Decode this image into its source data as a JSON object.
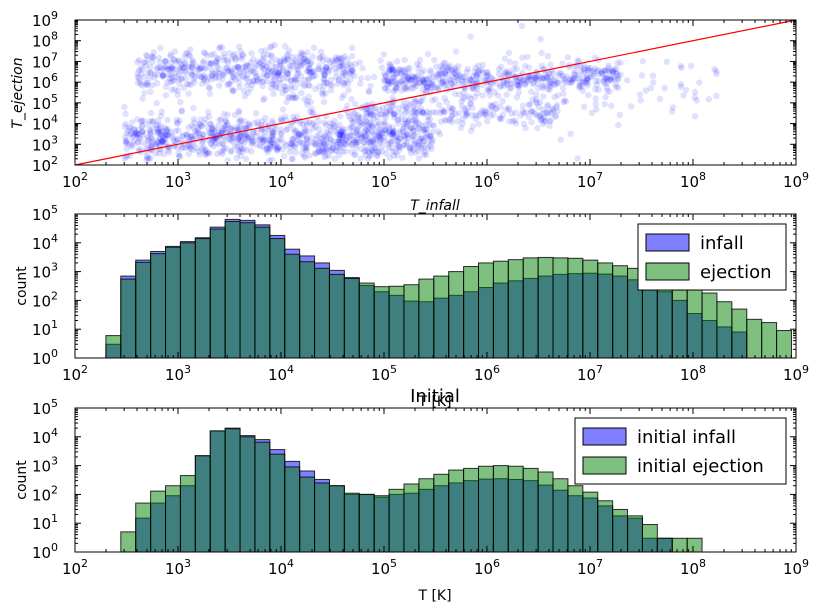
{
  "chart_data": [
    {
      "type": "scatter",
      "xscale": "log",
      "yscale": "log",
      "xlim": [
        100,
        1000000000
      ],
      "ylim": [
        100,
        1000000000
      ],
      "xlabel": "T_infall",
      "ylabel": "T_ejection",
      "x_ticks": [
        "10^2",
        "10^3",
        "10^4",
        "10^5",
        "10^6",
        "10^7",
        "10^8",
        "10^9"
      ],
      "y_ticks": [
        "10^2",
        "10^3",
        "10^4",
        "10^5",
        "10^6",
        "10^7",
        "10^8",
        "10^9"
      ],
      "color": "#0000ff",
      "point_alpha": 0.12,
      "reference_line": {
        "label": "y = x",
        "from": [
          100,
          100
        ],
        "to": [
          1000000000,
          1000000000
        ],
        "color": "#ff0000"
      },
      "clusters": [
        {
          "x_range": [
            300,
            300000
          ],
          "y_center": 2000,
          "y_spread": 1.0,
          "n": 900
        },
        {
          "x_range": [
            400,
            50000
          ],
          "y_center": 3000000,
          "y_spread": 1.0,
          "n": 500
        },
        {
          "x_range": [
            100000,
            20000000
          ],
          "y_center": 1500000,
          "y_spread": 0.7,
          "n": 450
        },
        {
          "x_range": [
            50000,
            5000000
          ],
          "y_center": 30000,
          "y_spread": 0.6,
          "n": 200
        },
        {
          "x_range": [
            5000,
            200000000
          ],
          "y_center": 400000,
          "y_spread": 1.8,
          "n": 180
        }
      ]
    },
    {
      "type": "bar",
      "histtype": "log-binned histogram",
      "xscale": "log",
      "yscale": "log",
      "xlim": [
        100,
        1000000000
      ],
      "ylim": [
        1,
        100000
      ],
      "xlabel": "T [K]",
      "ylabel": "count",
      "x_ticks": [
        "10^2",
        "10^3",
        "10^4",
        "10^5",
        "10^6",
        "10^7",
        "10^8",
        "10^9"
      ],
      "y_ticks": [
        "10^0",
        "10^1",
        "10^2",
        "10^3",
        "10^4",
        "10^5"
      ],
      "legend_position": "top-right",
      "bin_log_start": 2.3,
      "bin_width_dex": 0.1447,
      "series": [
        {
          "name": "infall",
          "color": "#0000ff",
          "alpha": 0.5,
          "values": [
            3,
            700,
            2500,
            5000,
            7500,
            11000,
            15000,
            35000,
            65000,
            60000,
            42000,
            18000,
            6000,
            3500,
            2000,
            1100,
            620,
            330,
            200,
            150,
            95,
            90,
            120,
            150,
            200,
            280,
            400,
            480,
            580,
            700,
            800,
            850,
            880,
            820,
            700,
            520,
            360,
            200,
            100,
            35,
            20,
            12,
            8,
            0,
            0,
            0,
            0,
            0
          ]
        },
        {
          "name": "ejection",
          "color": "#008000",
          "alpha": 0.5,
          "values": [
            6,
            550,
            2100,
            4200,
            7000,
            10000,
            14000,
            30000,
            55000,
            50000,
            35000,
            14000,
            4000,
            2200,
            1300,
            800,
            580,
            400,
            300,
            310,
            350,
            550,
            700,
            1000,
            1500,
            2000,
            2300,
            2600,
            3000,
            3100,
            3000,
            2900,
            2500,
            2000,
            1600,
            1300,
            1000,
            700,
            450,
            270,
            180,
            90,
            50,
            22,
            17,
            9,
            0,
            0,
            3,
            0,
            2
          ]
        }
      ]
    },
    {
      "type": "bar",
      "histtype": "log-binned histogram",
      "title": "Initial",
      "xscale": "log",
      "yscale": "log",
      "xlim": [
        100,
        1000000000
      ],
      "ylim": [
        1,
        100000
      ],
      "xlabel": "T [K]",
      "ylabel": "count",
      "x_ticks": [
        "10^2",
        "10^3",
        "10^4",
        "10^5",
        "10^6",
        "10^7",
        "10^8",
        "10^9"
      ],
      "y_ticks": [
        "10^0",
        "10^1",
        "10^2",
        "10^3",
        "10^4",
        "10^5"
      ],
      "legend_position": "top-right",
      "bin_log_start": 2.3,
      "bin_width_dex": 0.1447,
      "series": [
        {
          "name": "initial infall",
          "color": "#0000ff",
          "alpha": 0.5,
          "values": [
            0,
            0,
            15,
            50,
            90,
            200,
            2200,
            16000,
            20000,
            11000,
            8000,
            3600,
            1400,
            650,
            330,
            200,
            100,
            100,
            80,
            100,
            110,
            150,
            200,
            250,
            300,
            340,
            350,
            330,
            300,
            210,
            140,
            90,
            75,
            40,
            18,
            15,
            3,
            3,
            0,
            0,
            0
          ]
        },
        {
          "name": "initial ejection",
          "color": "#008000",
          "alpha": 0.5,
          "values": [
            0,
            5,
            50,
            130,
            200,
            450,
            2200,
            16000,
            19000,
            10000,
            6500,
            2500,
            900,
            400,
            250,
            200,
            110,
            100,
            90,
            150,
            230,
            350,
            500,
            700,
            800,
            950,
            1000,
            950,
            800,
            600,
            350,
            200,
            120,
            60,
            30,
            18,
            9,
            3,
            3,
            3,
            0
          ]
        }
      ]
    }
  ]
}
